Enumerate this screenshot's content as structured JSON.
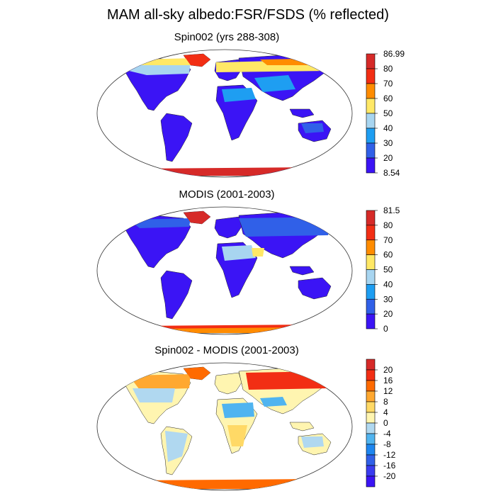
{
  "figure": {
    "title": "MAM all-sky albedo:FSR/FSDS (% reflected)"
  },
  "panels": [
    {
      "title": "Spin002 (yrs 288-308)",
      "colorbar": {
        "labels": [
          "86.99",
          "80",
          "70",
          "60",
          "50",
          "40",
          "30",
          "20",
          "8.54"
        ],
        "colors": [
          "#d62a28",
          "#f22e14",
          "#ff8c00",
          "#ffe866",
          "#a8d5f0",
          "#1e9ef2",
          "#3060e8",
          "#3b14f5"
        ]
      }
    },
    {
      "title": "MODIS (2001-2003)",
      "colorbar": {
        "labels": [
          "81.5",
          "80",
          "70",
          "60",
          "50",
          "40",
          "30",
          "20",
          "0"
        ],
        "colors": [
          "#d62a28",
          "#f22e14",
          "#ff8c00",
          "#ffe866",
          "#a8d5f0",
          "#1e9ef2",
          "#3060e8",
          "#3b14f5"
        ]
      }
    },
    {
      "title": "Spin002 - MODIS (2001-2003)",
      "colorbar": {
        "labels": [
          "20",
          "16",
          "12",
          "8",
          "4",
          "0",
          "-4",
          "-8",
          "-12",
          "-16",
          "-20"
        ],
        "colors": [
          "#d62a28",
          "#f22e14",
          "#ff6a00",
          "#ffa830",
          "#ffd966",
          "#fff5b0",
          "#b0d8f0",
          "#50b4f0",
          "#1e86f0",
          "#3060e8",
          "#3a3cf0",
          "#3b14f5"
        ]
      }
    }
  ]
}
